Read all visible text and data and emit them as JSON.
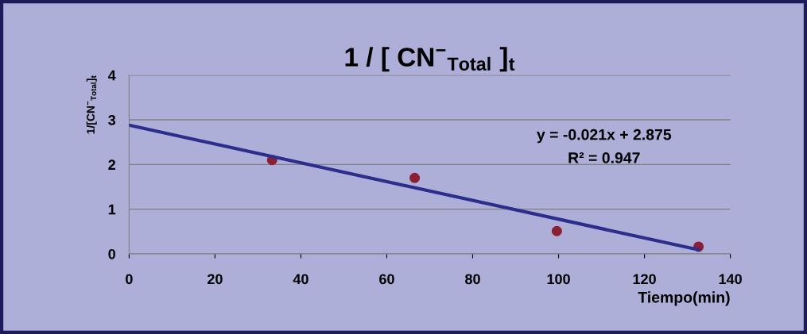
{
  "chart_data": {
    "type": "scatter",
    "title": "1 / [ CN$^{−}$$_{Total}$ ]$_{t}$",
    "xlabel": "Tiempo(min)",
    "ylabel": "1/[CN$^{−}$$_{Total}$]$_{t}$",
    "x": [
      33.3,
      66.5,
      99.6,
      132.6
    ],
    "series": [
      {
        "color": "#8b1f35",
        "values": [
          2.1,
          1.7,
          0.51,
          0.16
        ],
        "marker": "circle"
      },
      {
        "type": "line",
        "color": "#2b2e8c",
        "x": [
          0,
          132.6
        ],
        "values": [
          2.88,
          0.09
        ]
      }
    ],
    "annotations": [
      "y = -0.021x + 2.875",
      "R² = 0.947"
    ],
    "xlim": [
      0,
      140
    ],
    "xticks": [
      0,
      20,
      40,
      60,
      80,
      100,
      120,
      140
    ],
    "ylim": [
      0,
      4
    ],
    "yticks": [
      0,
      1,
      2,
      3,
      4
    ],
    "grid": "y",
    "line_style": "solid"
  }
}
